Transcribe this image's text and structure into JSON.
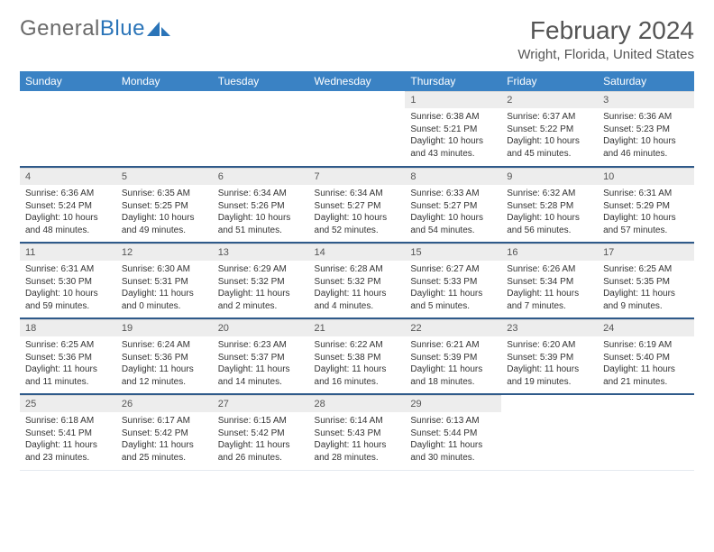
{
  "brand": {
    "part1": "General",
    "part2": "Blue"
  },
  "title": {
    "month": "February 2024",
    "location": "Wright, Florida, United States"
  },
  "colors": {
    "header_bg": "#3a82c4",
    "daynum_bg": "#ededed",
    "rule": "#2f5a8a",
    "text": "#333333",
    "brand_gray": "#6a6a6a",
    "brand_blue": "#2a74b8"
  },
  "weekdays": [
    "Sunday",
    "Monday",
    "Tuesday",
    "Wednesday",
    "Thursday",
    "Friday",
    "Saturday"
  ],
  "first_weekday_index": 4,
  "days": [
    {
      "n": 1,
      "sr": "6:38 AM",
      "ss": "5:21 PM",
      "dl": "10 hours and 43 minutes."
    },
    {
      "n": 2,
      "sr": "6:37 AM",
      "ss": "5:22 PM",
      "dl": "10 hours and 45 minutes."
    },
    {
      "n": 3,
      "sr": "6:36 AM",
      "ss": "5:23 PM",
      "dl": "10 hours and 46 minutes."
    },
    {
      "n": 4,
      "sr": "6:36 AM",
      "ss": "5:24 PM",
      "dl": "10 hours and 48 minutes."
    },
    {
      "n": 5,
      "sr": "6:35 AM",
      "ss": "5:25 PM",
      "dl": "10 hours and 49 minutes."
    },
    {
      "n": 6,
      "sr": "6:34 AM",
      "ss": "5:26 PM",
      "dl": "10 hours and 51 minutes."
    },
    {
      "n": 7,
      "sr": "6:34 AM",
      "ss": "5:27 PM",
      "dl": "10 hours and 52 minutes."
    },
    {
      "n": 8,
      "sr": "6:33 AM",
      "ss": "5:27 PM",
      "dl": "10 hours and 54 minutes."
    },
    {
      "n": 9,
      "sr": "6:32 AM",
      "ss": "5:28 PM",
      "dl": "10 hours and 56 minutes."
    },
    {
      "n": 10,
      "sr": "6:31 AM",
      "ss": "5:29 PM",
      "dl": "10 hours and 57 minutes."
    },
    {
      "n": 11,
      "sr": "6:31 AM",
      "ss": "5:30 PM",
      "dl": "10 hours and 59 minutes."
    },
    {
      "n": 12,
      "sr": "6:30 AM",
      "ss": "5:31 PM",
      "dl": "11 hours and 0 minutes."
    },
    {
      "n": 13,
      "sr": "6:29 AM",
      "ss": "5:32 PM",
      "dl": "11 hours and 2 minutes."
    },
    {
      "n": 14,
      "sr": "6:28 AM",
      "ss": "5:32 PM",
      "dl": "11 hours and 4 minutes."
    },
    {
      "n": 15,
      "sr": "6:27 AM",
      "ss": "5:33 PM",
      "dl": "11 hours and 5 minutes."
    },
    {
      "n": 16,
      "sr": "6:26 AM",
      "ss": "5:34 PM",
      "dl": "11 hours and 7 minutes."
    },
    {
      "n": 17,
      "sr": "6:25 AM",
      "ss": "5:35 PM",
      "dl": "11 hours and 9 minutes."
    },
    {
      "n": 18,
      "sr": "6:25 AM",
      "ss": "5:36 PM",
      "dl": "11 hours and 11 minutes."
    },
    {
      "n": 19,
      "sr": "6:24 AM",
      "ss": "5:36 PM",
      "dl": "11 hours and 12 minutes."
    },
    {
      "n": 20,
      "sr": "6:23 AM",
      "ss": "5:37 PM",
      "dl": "11 hours and 14 minutes."
    },
    {
      "n": 21,
      "sr": "6:22 AM",
      "ss": "5:38 PM",
      "dl": "11 hours and 16 minutes."
    },
    {
      "n": 22,
      "sr": "6:21 AM",
      "ss": "5:39 PM",
      "dl": "11 hours and 18 minutes."
    },
    {
      "n": 23,
      "sr": "6:20 AM",
      "ss": "5:39 PM",
      "dl": "11 hours and 19 minutes."
    },
    {
      "n": 24,
      "sr": "6:19 AM",
      "ss": "5:40 PM",
      "dl": "11 hours and 21 minutes."
    },
    {
      "n": 25,
      "sr": "6:18 AM",
      "ss": "5:41 PM",
      "dl": "11 hours and 23 minutes."
    },
    {
      "n": 26,
      "sr": "6:17 AM",
      "ss": "5:42 PM",
      "dl": "11 hours and 25 minutes."
    },
    {
      "n": 27,
      "sr": "6:15 AM",
      "ss": "5:42 PM",
      "dl": "11 hours and 26 minutes."
    },
    {
      "n": 28,
      "sr": "6:14 AM",
      "ss": "5:43 PM",
      "dl": "11 hours and 28 minutes."
    },
    {
      "n": 29,
      "sr": "6:13 AM",
      "ss": "5:44 PM",
      "dl": "11 hours and 30 minutes."
    }
  ],
  "labels": {
    "sunrise": "Sunrise:",
    "sunset": "Sunset:",
    "daylight": "Daylight:"
  }
}
